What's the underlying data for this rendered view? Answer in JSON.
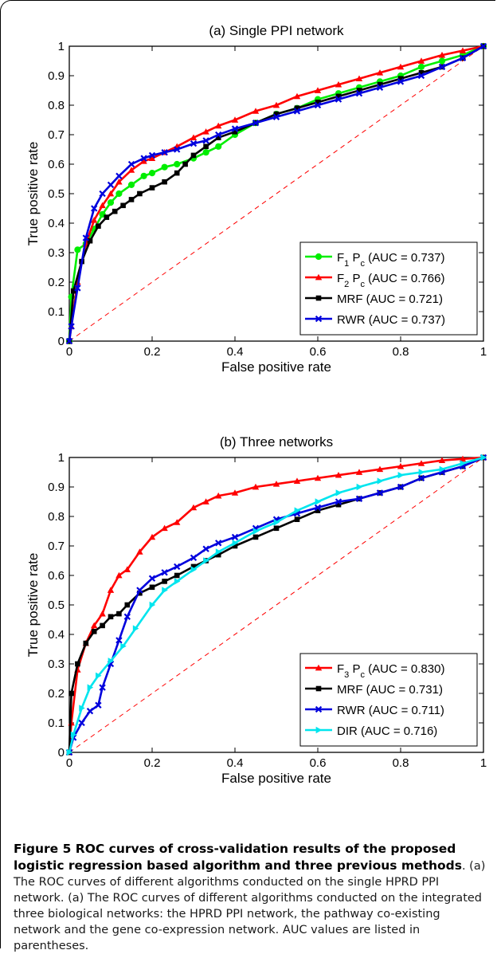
{
  "chart_data": [
    {
      "type": "line",
      "title": "(a) Single PPI network",
      "xlabel": "False positive rate",
      "ylabel": "True positive rate",
      "xlim": [
        0,
        1
      ],
      "ylim": [
        0,
        1
      ],
      "xticks": [
        "0",
        "0.2",
        "0.4",
        "0.6",
        "0.8",
        "1"
      ],
      "yticks": [
        "0",
        "0.1",
        "0.2",
        "0.3",
        "0.4",
        "0.5",
        "0.6",
        "0.7",
        "0.8",
        "0.9",
        "1"
      ],
      "legend_position": "bottom-right",
      "diagonal": {
        "x": [
          0,
          1
        ],
        "y": [
          0,
          1
        ],
        "color": "#ff0000",
        "style": "dashed"
      },
      "series": [
        {
          "name": "F1Pc",
          "label_main": "F",
          "label_sub1": "1",
          "label_mid": " P",
          "label_sub2": "c",
          "label_tail": " (AUC = 0.737)",
          "color": "#00ee00",
          "marker": "circle",
          "x": [
            0,
            0.005,
            0.02,
            0.04,
            0.06,
            0.08,
            0.1,
            0.12,
            0.15,
            0.18,
            0.2,
            0.23,
            0.26,
            0.3,
            0.33,
            0.36,
            0.4,
            0.45,
            0.5,
            0.55,
            0.6,
            0.65,
            0.7,
            0.75,
            0.8,
            0.85,
            0.9,
            0.95,
            1
          ],
          "y": [
            0,
            0.15,
            0.31,
            0.33,
            0.38,
            0.43,
            0.47,
            0.5,
            0.53,
            0.56,
            0.57,
            0.59,
            0.6,
            0.62,
            0.64,
            0.66,
            0.7,
            0.74,
            0.77,
            0.79,
            0.82,
            0.84,
            0.86,
            0.88,
            0.9,
            0.93,
            0.95,
            0.97,
            1
          ]
        },
        {
          "name": "F2Pc",
          "label_main": "F",
          "label_sub1": "2",
          "label_mid": " P",
          "label_sub2": "c",
          "label_tail": " (AUC = 0.766)",
          "color": "#ff0000",
          "marker": "triangle",
          "x": [
            0,
            0.005,
            0.02,
            0.04,
            0.06,
            0.08,
            0.1,
            0.12,
            0.15,
            0.18,
            0.2,
            0.23,
            0.26,
            0.3,
            0.33,
            0.36,
            0.4,
            0.45,
            0.5,
            0.55,
            0.6,
            0.65,
            0.7,
            0.75,
            0.8,
            0.85,
            0.9,
            0.95,
            1
          ],
          "y": [
            0,
            0.05,
            0.2,
            0.33,
            0.41,
            0.46,
            0.5,
            0.54,
            0.58,
            0.61,
            0.62,
            0.64,
            0.66,
            0.69,
            0.71,
            0.73,
            0.75,
            0.78,
            0.8,
            0.83,
            0.85,
            0.87,
            0.89,
            0.91,
            0.93,
            0.95,
            0.97,
            0.985,
            1
          ]
        },
        {
          "name": "MRF",
          "label_main": "MRF",
          "label_sub1": "",
          "label_mid": "",
          "label_sub2": "",
          "label_tail": " (AUC = 0.721)",
          "color": "#000000",
          "marker": "square",
          "x": [
            0,
            0.01,
            0.03,
            0.05,
            0.07,
            0.09,
            0.11,
            0.13,
            0.15,
            0.17,
            0.2,
            0.23,
            0.26,
            0.28,
            0.3,
            0.33,
            0.36,
            0.4,
            0.45,
            0.5,
            0.55,
            0.6,
            0.65,
            0.7,
            0.75,
            0.8,
            0.85,
            0.9,
            0.95,
            1
          ],
          "y": [
            0,
            0.17,
            0.27,
            0.34,
            0.39,
            0.42,
            0.44,
            0.46,
            0.48,
            0.5,
            0.52,
            0.54,
            0.57,
            0.6,
            0.63,
            0.66,
            0.69,
            0.71,
            0.74,
            0.77,
            0.79,
            0.81,
            0.83,
            0.85,
            0.87,
            0.89,
            0.91,
            0.93,
            0.96,
            1
          ]
        },
        {
          "name": "RWR",
          "label_main": "RWR",
          "label_sub1": "",
          "label_mid": "",
          "label_sub2": "",
          "label_tail": " (AUC = 0.737)",
          "color": "#0000dd",
          "marker": "x",
          "x": [
            0,
            0.005,
            0.02,
            0.04,
            0.06,
            0.08,
            0.1,
            0.12,
            0.15,
            0.18,
            0.2,
            0.23,
            0.26,
            0.3,
            0.33,
            0.36,
            0.4,
            0.45,
            0.5,
            0.55,
            0.6,
            0.65,
            0.7,
            0.75,
            0.8,
            0.85,
            0.9,
            0.95,
            1
          ],
          "y": [
            0,
            0.05,
            0.18,
            0.35,
            0.45,
            0.5,
            0.53,
            0.56,
            0.6,
            0.62,
            0.63,
            0.64,
            0.65,
            0.67,
            0.68,
            0.7,
            0.72,
            0.74,
            0.76,
            0.78,
            0.8,
            0.82,
            0.84,
            0.86,
            0.88,
            0.9,
            0.93,
            0.96,
            1
          ]
        }
      ]
    },
    {
      "type": "line",
      "title": "(b) Three networks",
      "xlabel": "False positive rate",
      "ylabel": "True positive rate",
      "xlim": [
        0,
        1
      ],
      "ylim": [
        0,
        1
      ],
      "xticks": [
        "0",
        "0.2",
        "0.4",
        "0.6",
        "0.8",
        "1"
      ],
      "yticks": [
        "0",
        "0.1",
        "0.2",
        "0.3",
        "0.4",
        "0.5",
        "0.6",
        "0.7",
        "0.8",
        "0.9",
        "1"
      ],
      "legend_position": "bottom-right",
      "diagonal": {
        "x": [
          0,
          1
        ],
        "y": [
          0,
          1
        ],
        "color": "#ff0000",
        "style": "dashed"
      },
      "series": [
        {
          "name": "F3Pc",
          "label_main": "F",
          "label_sub1": "3",
          "label_mid": " P",
          "label_sub2": "c",
          "label_tail": " (AUC = 0.830)",
          "color": "#ff0000",
          "marker": "triangle",
          "x": [
            0,
            0.005,
            0.02,
            0.04,
            0.06,
            0.08,
            0.1,
            0.12,
            0.14,
            0.17,
            0.2,
            0.23,
            0.26,
            0.3,
            0.33,
            0.36,
            0.4,
            0.45,
            0.5,
            0.55,
            0.6,
            0.65,
            0.7,
            0.75,
            0.8,
            0.85,
            0.9,
            0.95,
            1
          ],
          "y": [
            0,
            0.1,
            0.28,
            0.37,
            0.43,
            0.47,
            0.55,
            0.6,
            0.62,
            0.68,
            0.73,
            0.76,
            0.78,
            0.83,
            0.85,
            0.87,
            0.88,
            0.9,
            0.91,
            0.92,
            0.93,
            0.94,
            0.95,
            0.96,
            0.97,
            0.98,
            0.99,
            0.995,
            1
          ]
        },
        {
          "name": "MRF",
          "label_main": "MRF",
          "label_sub1": "",
          "label_mid": "",
          "label_sub2": "",
          "label_tail": " (AUC = 0.731)",
          "color": "#000000",
          "marker": "square",
          "x": [
            0,
            0.005,
            0.02,
            0.04,
            0.06,
            0.08,
            0.1,
            0.12,
            0.14,
            0.17,
            0.2,
            0.23,
            0.26,
            0.3,
            0.33,
            0.36,
            0.4,
            0.45,
            0.5,
            0.55,
            0.6,
            0.65,
            0.7,
            0.75,
            0.8,
            0.85,
            0.9,
            0.95,
            1
          ],
          "y": [
            0,
            0.2,
            0.3,
            0.37,
            0.41,
            0.43,
            0.46,
            0.47,
            0.5,
            0.54,
            0.56,
            0.58,
            0.6,
            0.63,
            0.65,
            0.67,
            0.7,
            0.73,
            0.76,
            0.79,
            0.82,
            0.84,
            0.86,
            0.88,
            0.9,
            0.93,
            0.95,
            0.97,
            1
          ]
        },
        {
          "name": "RWR",
          "label_main": "RWR",
          "label_sub1": "",
          "label_mid": "",
          "label_sub2": "",
          "label_tail": " (AUC = 0.711)",
          "color": "#0000dd",
          "marker": "x",
          "x": [
            0,
            0.01,
            0.03,
            0.05,
            0.07,
            0.08,
            0.1,
            0.12,
            0.14,
            0.17,
            0.2,
            0.23,
            0.26,
            0.3,
            0.33,
            0.36,
            0.4,
            0.45,
            0.5,
            0.55,
            0.6,
            0.65,
            0.7,
            0.75,
            0.8,
            0.85,
            0.9,
            0.95,
            1
          ],
          "y": [
            0,
            0.05,
            0.1,
            0.14,
            0.16,
            0.22,
            0.3,
            0.38,
            0.46,
            0.55,
            0.59,
            0.61,
            0.63,
            0.66,
            0.69,
            0.71,
            0.73,
            0.76,
            0.79,
            0.81,
            0.83,
            0.85,
            0.86,
            0.88,
            0.9,
            0.93,
            0.95,
            0.97,
            1
          ]
        },
        {
          "name": "DIR",
          "label_main": "DIR",
          "label_sub1": "",
          "label_mid": "",
          "label_sub2": "",
          "label_tail": " (AUC = 0.716)",
          "color": "#00e5ee",
          "marker": "rtriangle",
          "x": [
            0,
            0.01,
            0.03,
            0.05,
            0.07,
            0.1,
            0.13,
            0.16,
            0.2,
            0.23,
            0.26,
            0.3,
            0.33,
            0.36,
            0.4,
            0.45,
            0.5,
            0.55,
            0.6,
            0.65,
            0.7,
            0.75,
            0.8,
            0.85,
            0.9,
            0.95,
            1
          ],
          "y": [
            0,
            0.06,
            0.15,
            0.22,
            0.26,
            0.31,
            0.36,
            0.42,
            0.5,
            0.55,
            0.58,
            0.62,
            0.65,
            0.68,
            0.71,
            0.75,
            0.78,
            0.82,
            0.85,
            0.88,
            0.9,
            0.92,
            0.94,
            0.95,
            0.96,
            0.98,
            1
          ]
        }
      ]
    }
  ],
  "caption": {
    "bold": "Figure 5 ROC curves of cross-validation results of the proposed logistic regression based algorithm and three previous methods",
    "rest": ". (a) The ROC curves of different algorithms conducted on the single HPRD PPI network. (a) The ROC curves of different algorithms conducted on the integrated three biological networks: the HPRD PPI network, the pathway co-existing network and the gene co-expression network. AUC values are listed in parentheses."
  }
}
